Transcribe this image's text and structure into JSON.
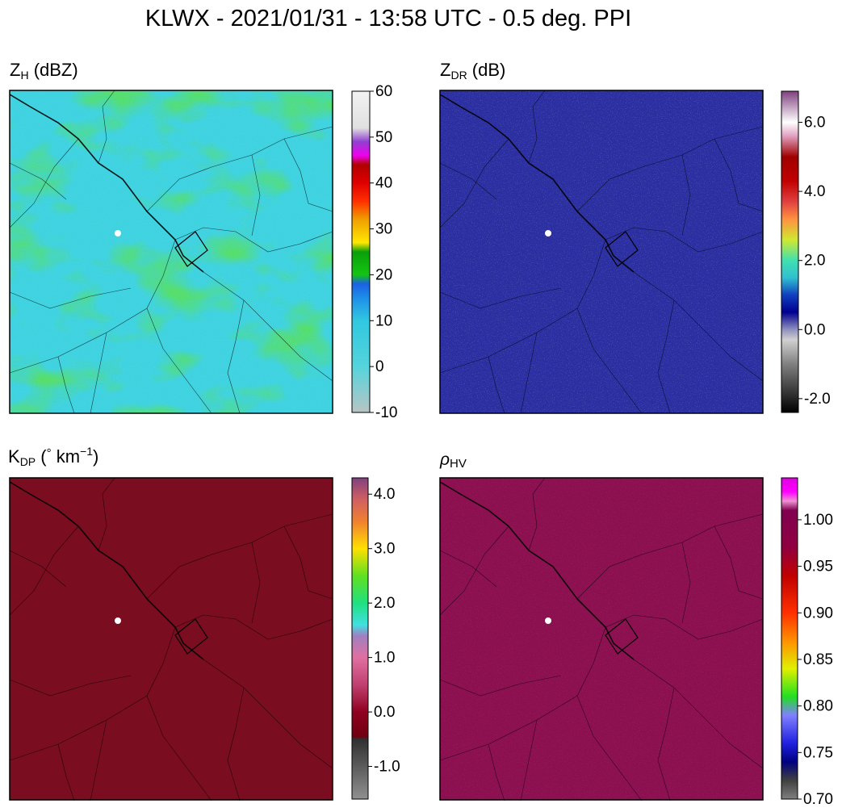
{
  "figure_title": "KLWX - 2021/01/31 - 13:58 UTC - 0.5 deg. PPI",
  "colors": {
    "radar_site": "#ffffff",
    "county_lines": "#000000"
  },
  "chart_data": [
    {
      "type": "heatmap",
      "title": "Z_H (dBZ)",
      "title_main": "Z",
      "title_sub": "H",
      "title_suffix": " (dBZ)",
      "dominant_color": "#3fd2e0",
      "colorbar": {
        "ticks": [
          60,
          50,
          40,
          30,
          20,
          10,
          0,
          -10
        ],
        "tick_labels": [
          "60",
          "50",
          "40",
          "30",
          "20",
          "10",
          "0",
          "-10"
        ],
        "range": [
          -10,
          60
        ],
        "stops": [
          [
            -10,
            "#b8c4c4"
          ],
          [
            0,
            "#55d4dc"
          ],
          [
            10,
            "#30c8e0"
          ],
          [
            15,
            "#1e8ee8"
          ],
          [
            18,
            "#1a62e4"
          ],
          [
            20,
            "#14c414"
          ],
          [
            25,
            "#0aa00a"
          ],
          [
            27,
            "#ffe800"
          ],
          [
            32,
            "#f0a000"
          ],
          [
            36,
            "#ff3000"
          ],
          [
            40,
            "#e00000"
          ],
          [
            44,
            "#b00000"
          ],
          [
            46,
            "#f000f0"
          ],
          [
            49,
            "#9040d0"
          ],
          [
            52,
            "#e0e0e0"
          ],
          [
            60,
            "#f2f2f2"
          ]
        ]
      }
    },
    {
      "type": "heatmap",
      "title": "Z_DR (dB)",
      "title_main": "Z",
      "title_sub": "DR",
      "title_suffix": " (dB)",
      "dominant_color": "#2a2ea0",
      "colorbar": {
        "ticks": [
          6.0,
          4.0,
          2.0,
          0.0,
          -2.0
        ],
        "tick_labels": [
          "6.0",
          "4.0",
          "2.0",
          "0.0",
          "-2.0"
        ],
        "range": [
          -2.4,
          6.9
        ],
        "stops": [
          [
            -2.4,
            "#000000"
          ],
          [
            -1.0,
            "#808080"
          ],
          [
            -0.3,
            "#d0d0d0"
          ],
          [
            0.0,
            "#9090c0"
          ],
          [
            0.5,
            "#000090"
          ],
          [
            1.0,
            "#1040c0"
          ],
          [
            1.5,
            "#30c0d0"
          ],
          [
            2.0,
            "#40e0b0"
          ],
          [
            2.6,
            "#d0e830"
          ],
          [
            3.2,
            "#ff9040"
          ],
          [
            3.7,
            "#e04040"
          ],
          [
            4.3,
            "#c00000"
          ],
          [
            5.0,
            "#a00000"
          ],
          [
            5.6,
            "#e0a0c0"
          ],
          [
            6.0,
            "#ffffff"
          ],
          [
            6.9,
            "#804080"
          ]
        ]
      }
    },
    {
      "type": "heatmap",
      "title": "K_DP (° km^-1)",
      "title_main": "K",
      "title_sub": "DP",
      "title_mid": " (",
      "title_degree": "°",
      "title_unit": " km",
      "title_sup": "−1",
      "title_close": ")",
      "dominant_color": "#7a0d20",
      "colorbar": {
        "ticks": [
          4.0,
          3.0,
          2.0,
          1.0,
          0.0,
          -1.0
        ],
        "tick_labels": [
          "4.0",
          "3.0",
          "2.0",
          "1.0",
          "0.0",
          "-1.0"
        ],
        "range": [
          -1.6,
          4.3
        ],
        "stops": [
          [
            -1.6,
            "#909090"
          ],
          [
            -0.5,
            "#303030"
          ],
          [
            -0.45,
            "#700010"
          ],
          [
            0.0,
            "#900020"
          ],
          [
            0.5,
            "#c04070"
          ],
          [
            1.0,
            "#e070a0"
          ],
          [
            1.4,
            "#a080c0"
          ],
          [
            1.6,
            "#40e0e0"
          ],
          [
            2.0,
            "#20e080"
          ],
          [
            2.5,
            "#60e020"
          ],
          [
            3.0,
            "#ffe000"
          ],
          [
            3.5,
            "#f08030"
          ],
          [
            3.9,
            "#d06060"
          ],
          [
            4.3,
            "#804080"
          ]
        ]
      }
    },
    {
      "type": "heatmap",
      "title": "ρ_HV",
      "title_main": "ρ",
      "title_sub": "HV",
      "dominant_color": "#8c1050",
      "colorbar": {
        "ticks": [
          1.0,
          0.95,
          0.9,
          0.85,
          0.8,
          0.75,
          0.7
        ],
        "tick_labels": [
          "1.00",
          "0.95",
          "0.90",
          "0.85",
          "0.80",
          "0.75",
          "0.70"
        ],
        "range": [
          0.7,
          1.045
        ],
        "stops": [
          [
            0.7,
            "#808080"
          ],
          [
            0.72,
            "#404040"
          ],
          [
            0.74,
            "#000080"
          ],
          [
            0.76,
            "#2020e0"
          ],
          [
            0.79,
            "#8080ff"
          ],
          [
            0.81,
            "#20e020"
          ],
          [
            0.84,
            "#e0f000"
          ],
          [
            0.87,
            "#ff9000"
          ],
          [
            0.9,
            "#ff3000"
          ],
          [
            0.94,
            "#c00000"
          ],
          [
            0.97,
            "#900040"
          ],
          [
            1.01,
            "#800050"
          ],
          [
            1.02,
            "#f090d0"
          ],
          [
            1.03,
            "#ff00ff"
          ],
          [
            1.045,
            "#e000e0"
          ]
        ]
      }
    }
  ]
}
